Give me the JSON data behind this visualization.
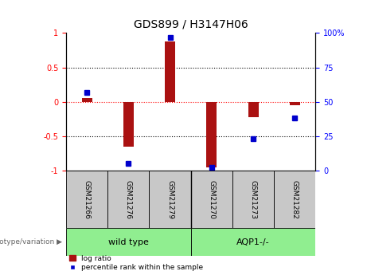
{
  "title": "GDS899 / H3147H06",
  "samples": [
    "GSM21266",
    "GSM21276",
    "GSM21279",
    "GSM21270",
    "GSM21273",
    "GSM21282"
  ],
  "log_ratio": [
    0.05,
    -0.65,
    0.88,
    -0.95,
    -0.22,
    -0.05
  ],
  "percentile_rank": [
    57,
    5,
    97,
    2,
    23,
    38
  ],
  "bar_color": "#AA1111",
  "dot_color": "#0000CC",
  "ylim_left": [
    -1,
    1
  ],
  "ylim_right": [
    0,
    100
  ],
  "yticks_left": [
    -1,
    -0.5,
    0,
    0.5,
    1
  ],
  "ytick_labels_left": [
    "-1",
    "-0.5",
    "0",
    "0.5",
    "1"
  ],
  "yticks_right": [
    0,
    25,
    50,
    75,
    100
  ],
  "ytick_labels_right": [
    "0",
    "25",
    "50",
    "75",
    "100%"
  ],
  "dotted_lines": [
    -0.5,
    0.5
  ],
  "group_label": "genotype/variation",
  "legend_bar_label": "log ratio",
  "legend_dot_label": "percentile rank within the sample",
  "background_color": "#FFFFFF",
  "header_bg": "#C8C8C8",
  "wild_type_color": "#90EE90",
  "aqp1_color": "#90EE90",
  "wild_type_label": "wild type",
  "aqp1_label": "AQP1-/-"
}
